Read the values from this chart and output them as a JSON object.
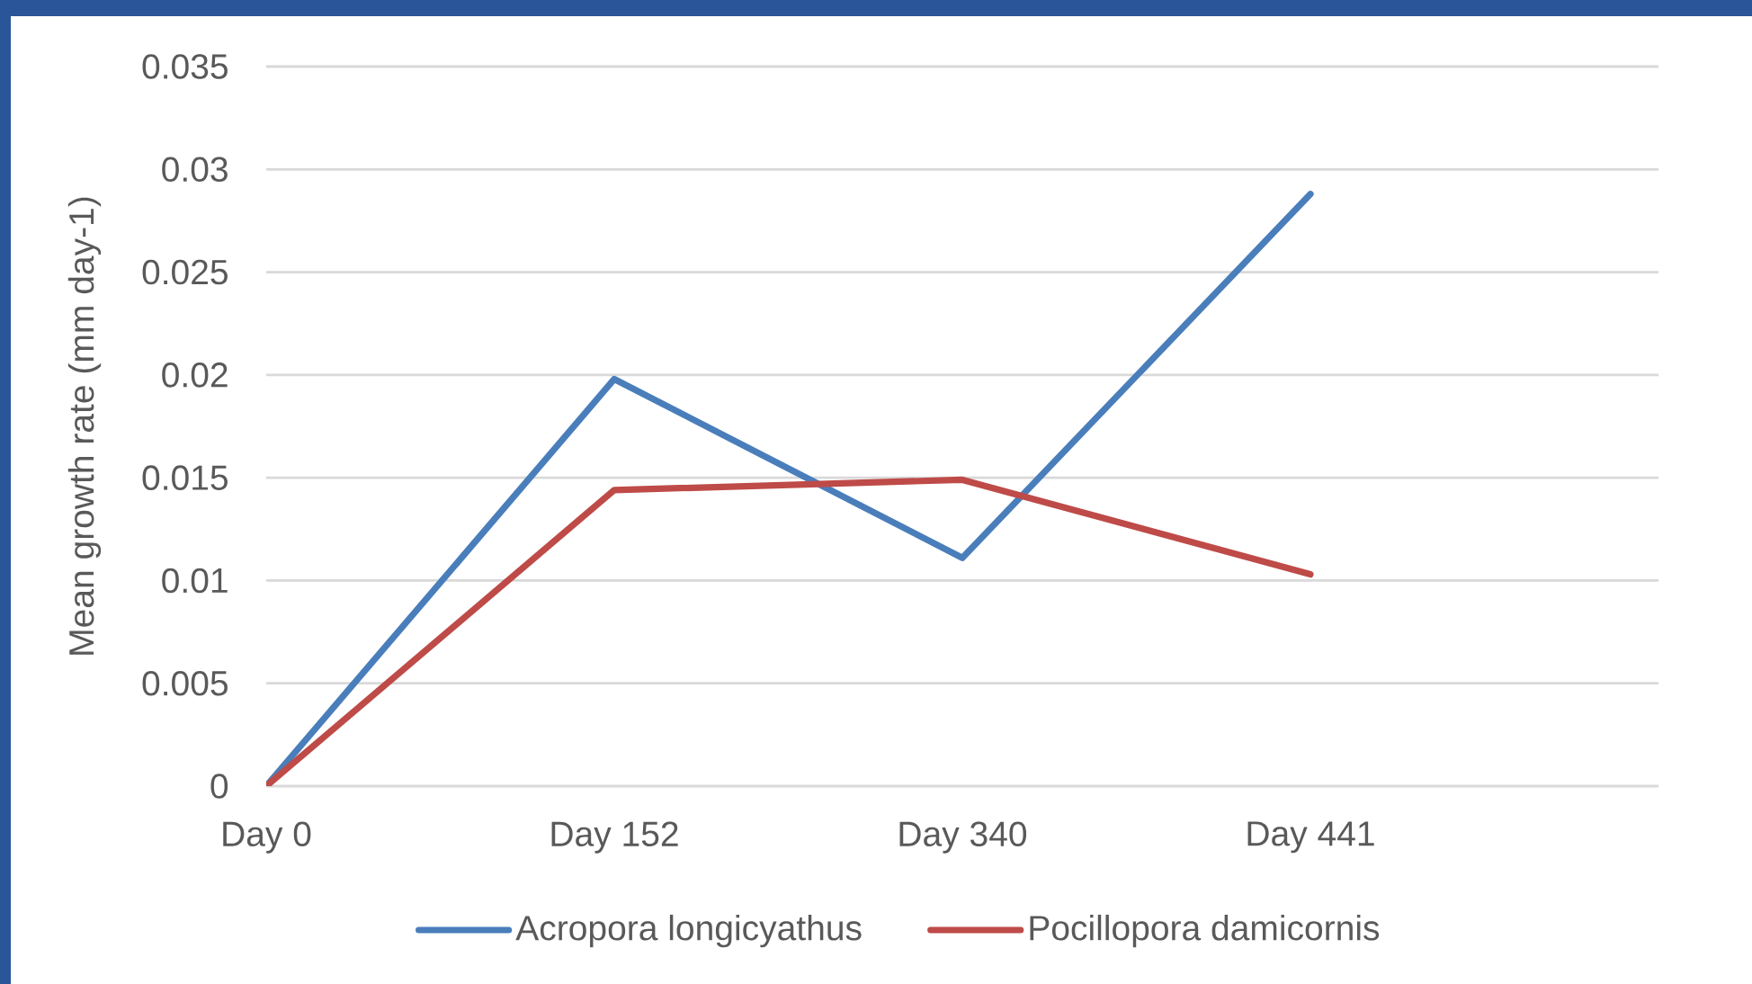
{
  "chart_data": {
    "type": "line",
    "ylabel": "Mean growth rate (mm day-1)",
    "categories": [
      "Day 0",
      "Day 152",
      "Day 340",
      "Day 441",
      null
    ],
    "series": [
      {
        "name": "Acropora longicyathus",
        "color": "#4a7ebb",
        "values": [
          0,
          0.0198,
          0.0111,
          0.0288,
          null
        ]
      },
      {
        "name": "Pocillopora damicornis",
        "color": "#be4b48",
        "values": [
          0,
          0.0144,
          0.0149,
          0.0103,
          null
        ]
      }
    ],
    "ylim": [
      0,
      0.035
    ],
    "yticks": [
      0,
      0.005,
      0.01,
      0.015,
      0.02,
      0.025,
      0.03,
      0.035
    ],
    "grid": "y",
    "legend": "bottom",
    "marker": "none",
    "line_style": "solid"
  }
}
